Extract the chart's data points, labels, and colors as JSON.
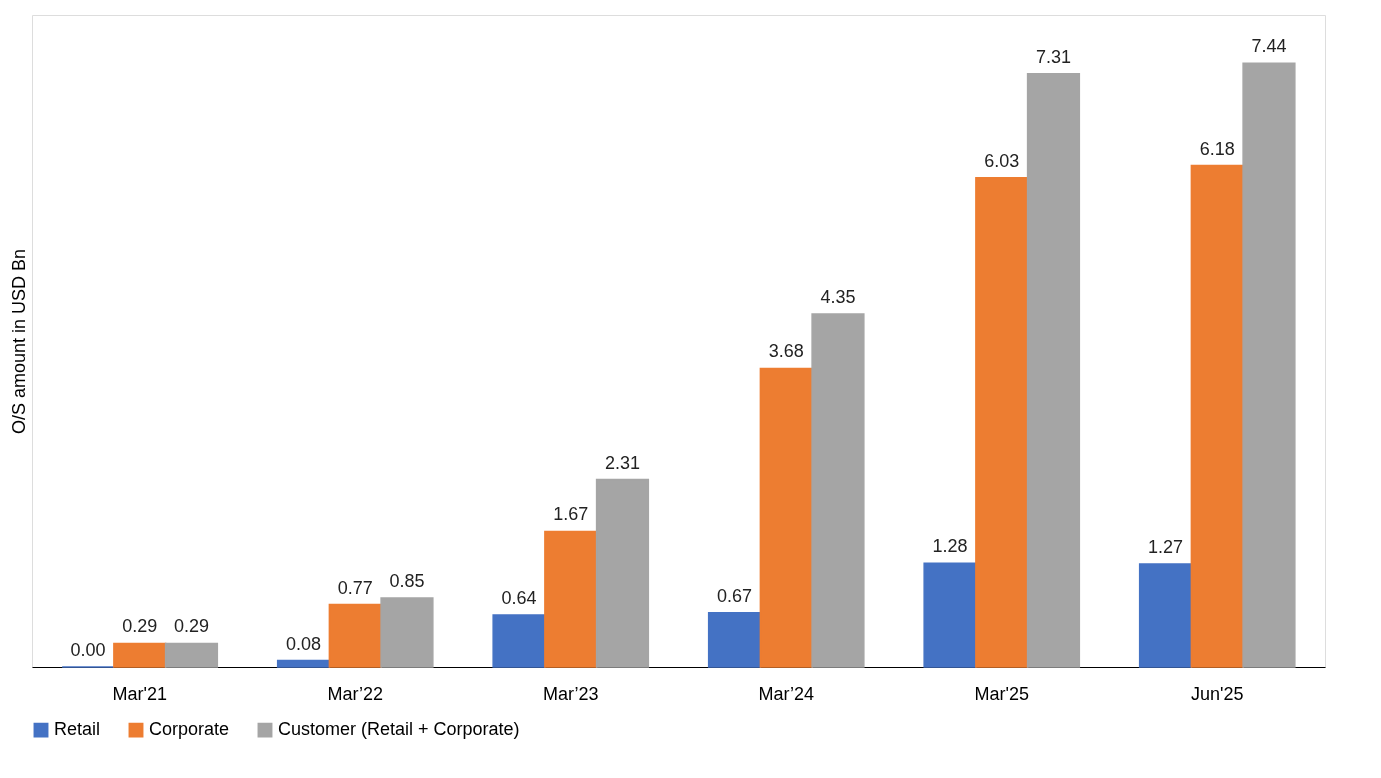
{
  "chart_data": {
    "type": "bar",
    "ylabel": "O/S amount in USD Bn",
    "categories": [
      "Mar'21",
      "Mar’22",
      "Mar’23",
      "Mar’24",
      "Mar'25",
      "Jun'25"
    ],
    "series": [
      {
        "name": "Retail",
        "color": "#4472c4",
        "values": [
          0.0,
          0.08,
          0.64,
          0.67,
          1.28,
          1.27
        ],
        "value_labels": [
          "0.00",
          "0.08",
          "0.64",
          "0.67",
          "1.28",
          "1.27"
        ]
      },
      {
        "name": "Corporate",
        "color": "#ed7d31",
        "values": [
          0.29,
          0.77,
          1.67,
          3.68,
          6.03,
          6.18
        ],
        "value_labels": [
          "0.29",
          "0.77",
          "1.67",
          "3.68",
          "6.03",
          "6.18"
        ]
      },
      {
        "name": "Customer (Retail + Corporate)",
        "color": "#a5a5a5",
        "values": [
          0.29,
          0.85,
          2.31,
          4.35,
          7.31,
          7.44
        ],
        "value_labels": [
          "0.29",
          "0.85",
          "2.31",
          "4.35",
          "7.31",
          "7.44"
        ]
      }
    ],
    "legend": "bottom",
    "grid": false
  }
}
